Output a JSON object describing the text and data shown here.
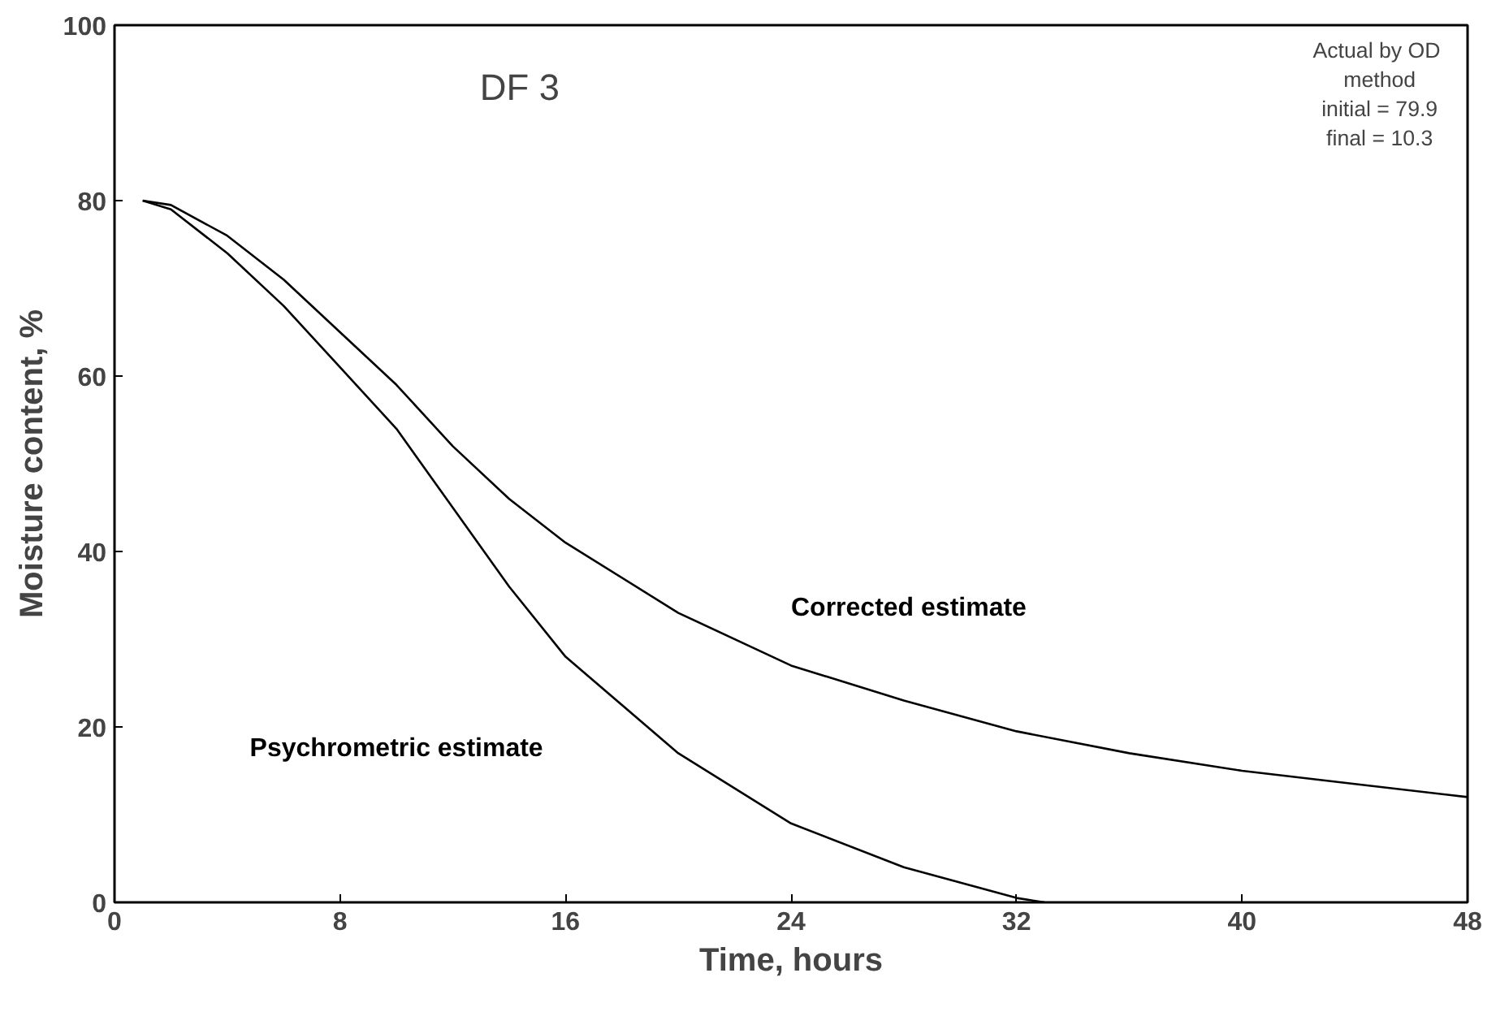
{
  "chart_data": {
    "type": "line",
    "xlabel": "Time, hours",
    "ylabel": "Moisture content, %",
    "xlim": [
      0,
      48
    ],
    "xticks": [
      0,
      8,
      16,
      24,
      32,
      40,
      48
    ],
    "ylim": [
      0,
      100
    ],
    "yticks": [
      0,
      20,
      40,
      60,
      80,
      100
    ],
    "grid": false,
    "marker": "none",
    "line_style": "solid",
    "series": [
      {
        "name": "Corrected estimate",
        "color": "#000000",
        "x": [
          1,
          2,
          4,
          6,
          8,
          10,
          12,
          14,
          16,
          20,
          24,
          28,
          32,
          36,
          40,
          44,
          48
        ],
        "values": [
          80,
          79.5,
          76,
          71,
          65,
          59,
          52,
          46,
          41,
          33,
          27,
          23,
          19.5,
          17,
          15,
          13.5,
          12
        ]
      },
      {
        "name": "Psychrometric estimate",
        "color": "#000000",
        "x": [
          1,
          2,
          4,
          6,
          8,
          10,
          12,
          14,
          16,
          20,
          24,
          28,
          32,
          33
        ],
        "values": [
          80,
          79,
          74,
          68,
          61,
          54,
          45,
          36,
          28,
          17,
          9,
          4,
          0.5,
          0
        ]
      }
    ],
    "annotations": [
      "DF 3",
      "Actual  by OD\nmethod\ninitial = 79.9\nfinal = 10.3"
    ]
  }
}
